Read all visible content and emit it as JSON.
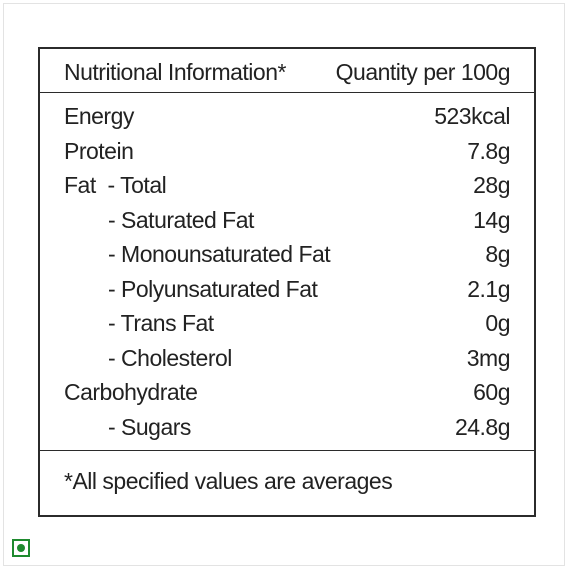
{
  "header": {
    "left": "Nutritional Information*",
    "right": "Quantity per 100g"
  },
  "rows": [
    {
      "label": "Energy",
      "value": "523kcal",
      "indent": false
    },
    {
      "label": "Protein",
      "value": "7.8g",
      "indent": false
    },
    {
      "label": "Fat  - Total",
      "value": "28g",
      "indent": false
    },
    {
      "label": "- Saturated Fat",
      "value": "14g",
      "indent": true
    },
    {
      "label": "- Monounsaturated Fat",
      "value": "8g",
      "indent": true
    },
    {
      "label": "- Polyunsaturated Fat",
      "value": "2.1g",
      "indent": true
    },
    {
      "label": "- Trans Fat",
      "value": "0g",
      "indent": true
    },
    {
      "label": "- Cholesterol",
      "value": "3mg",
      "indent": true
    },
    {
      "label": "Carbohydrate",
      "value": "60g",
      "indent": false
    },
    {
      "label": "- Sugars",
      "value": "24.8g",
      "indent": true
    }
  ],
  "footer": {
    "note": "*All specified values are averages"
  },
  "badge": {
    "icon": "veg-mark-icon",
    "color": "#1e8a2e"
  }
}
